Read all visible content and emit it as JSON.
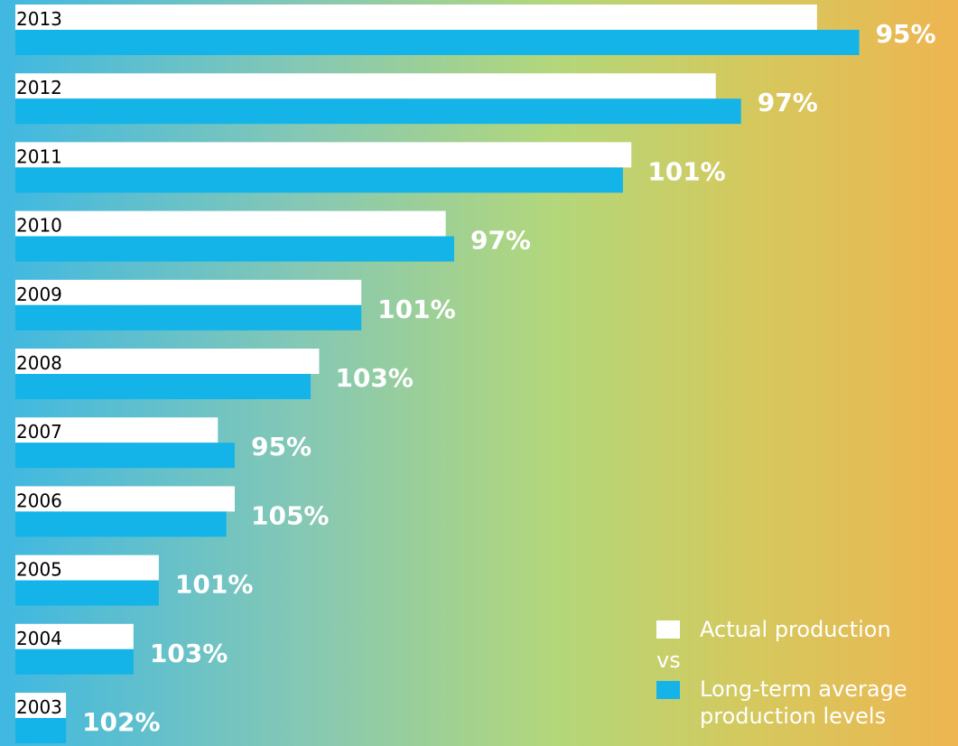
{
  "chart_data": {
    "type": "bar",
    "orientation": "horizontal",
    "categories": [
      "2013",
      "2012",
      "2011",
      "2010",
      "2009",
      "2008",
      "2007",
      "2006",
      "2005",
      "2004",
      "2003"
    ],
    "series": [
      {
        "name": "Actual production",
        "color": "#ffffff",
        "values": [
          95,
          83,
          73,
          51,
          41,
          36,
          24,
          26,
          17,
          14,
          6
        ]
      },
      {
        "name": "Long-term average production levels",
        "color": "#14b4e8",
        "values": [
          100,
          86,
          72,
          52,
          41,
          35,
          26,
          25,
          17,
          14,
          6
        ]
      }
    ],
    "data_labels": [
      "95%",
      "97%",
      "101%",
      "97%",
      "101%",
      "103%",
      "95%",
      "105%",
      "101%",
      "103%",
      "102%"
    ],
    "xlim": [
      0,
      107
    ],
    "grid": false,
    "legend_position": "bottom-right"
  },
  "legend": {
    "actual_label": "Actual production",
    "vs_label": "vs",
    "average_label_line1": "Long-term average",
    "average_label_line2": "production levels"
  },
  "colors": {
    "actual": "#ffffff",
    "average": "#14b4e8",
    "label": "#ffffff",
    "year_text": "#000000"
  }
}
